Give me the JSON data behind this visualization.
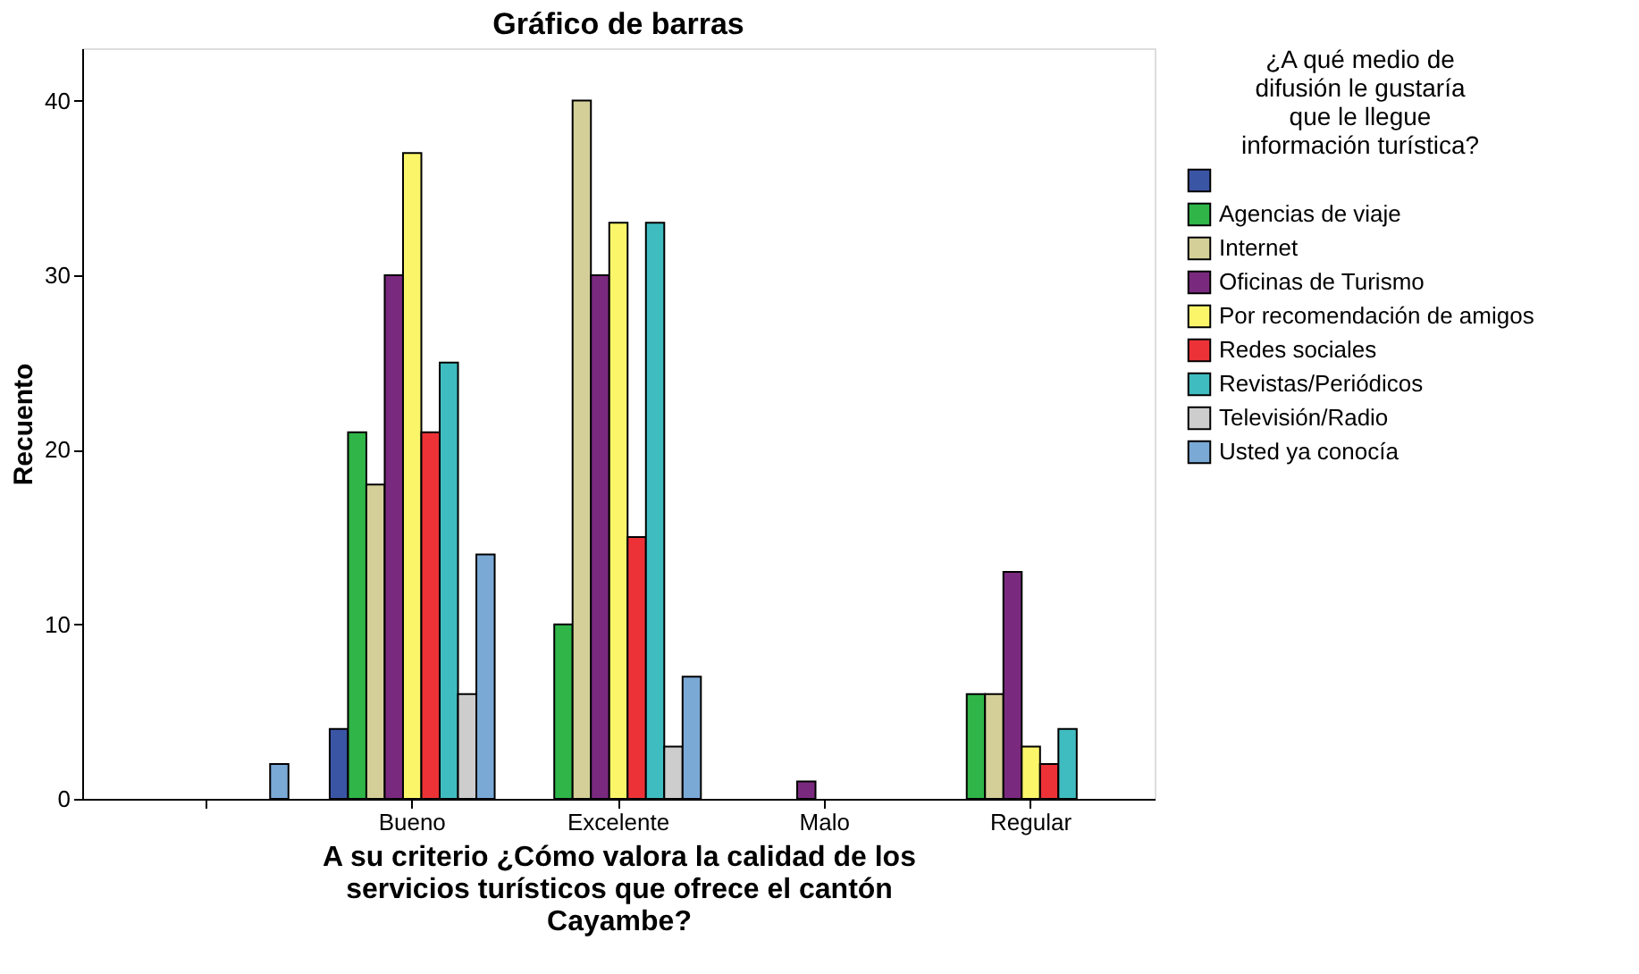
{
  "chart_data": {
    "type": "bar",
    "title": "Gráfico de barras",
    "xlabel": "A su criterio ¿Cómo valora la calidad de los servicios turísticos que ofrece el cantón Cayambe?",
    "ylabel": "Recuento",
    "legend_title": "¿A qué medio de difusión le gustaría que le llegue información turística?",
    "legend": "right",
    "categories": [
      null,
      "Bueno",
      "Excelente",
      "Malo",
      "Regular"
    ],
    "ylim": [
      0,
      43
    ],
    "yticks": [
      0,
      10,
      20,
      30,
      40
    ],
    "series": [
      {
        "color": "#3b55a5",
        "values": [
          null,
          4,
          null,
          null,
          null
        ]
      },
      {
        "name": "Agencias de viaje",
        "color": "#2fb548",
        "values": [
          null,
          21,
          10,
          null,
          6
        ]
      },
      {
        "name": "Internet",
        "color": "#d4cf98",
        "values": [
          null,
          18,
          40,
          null,
          6
        ]
      },
      {
        "name": "Oficinas de Turismo",
        "color": "#7a2a7e",
        "values": [
          null,
          30,
          30,
          1,
          13
        ]
      },
      {
        "name": "Por recomendación de amigos",
        "color": "#fbf56a",
        "values": [
          null,
          37,
          33,
          null,
          3
        ]
      },
      {
        "name": "Redes sociales",
        "color": "#ec3237",
        "values": [
          null,
          21,
          15,
          null,
          2
        ]
      },
      {
        "name": "Revistas/Periódicos",
        "color": "#3fbcc0",
        "values": [
          null,
          25,
          33,
          null,
          4
        ]
      },
      {
        "name": "Televisión/Radio",
        "color": "#cdcdcd",
        "values": [
          null,
          6,
          3,
          null,
          null
        ]
      },
      {
        "name": "Usted ya conocía",
        "color": "#7aa9d6",
        "values": [
          2,
          14,
          7,
          null,
          null
        ]
      }
    ]
  }
}
